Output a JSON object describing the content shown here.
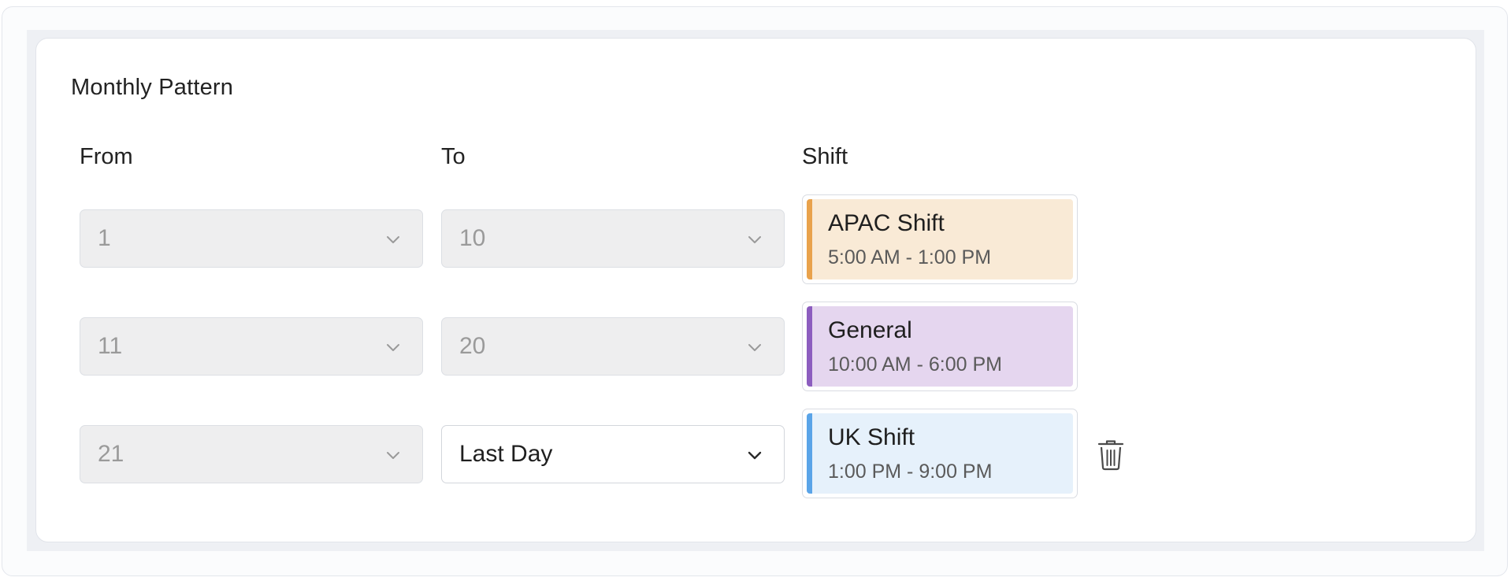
{
  "section": {
    "title": "Monthly Pattern"
  },
  "columns": {
    "from": "From",
    "to": "To",
    "shift": "Shift"
  },
  "rows": [
    {
      "from": "1",
      "to": "10",
      "to_editable": false,
      "shift": {
        "name": "APAC Shift",
        "time": "5:00 AM - 1:00 PM",
        "bg": "#f9ead6",
        "accent": "#e9a24c"
      }
    },
    {
      "from": "11",
      "to": "20",
      "to_editable": false,
      "shift": {
        "name": "General",
        "time": "10:00 AM - 6:00 PM",
        "bg": "#e5d6ef",
        "accent": "#8c5dbf"
      }
    },
    {
      "from": "21",
      "to": "Last Day",
      "to_editable": true,
      "shift": {
        "name": "UK Shift",
        "time": "1:00 PM - 9:00 PM",
        "bg": "#e6f1fb",
        "accent": "#5aa4e8"
      },
      "deletable": true
    }
  ],
  "icons": {
    "dropdown": "chevron-down-icon",
    "delete": "trash-icon"
  }
}
